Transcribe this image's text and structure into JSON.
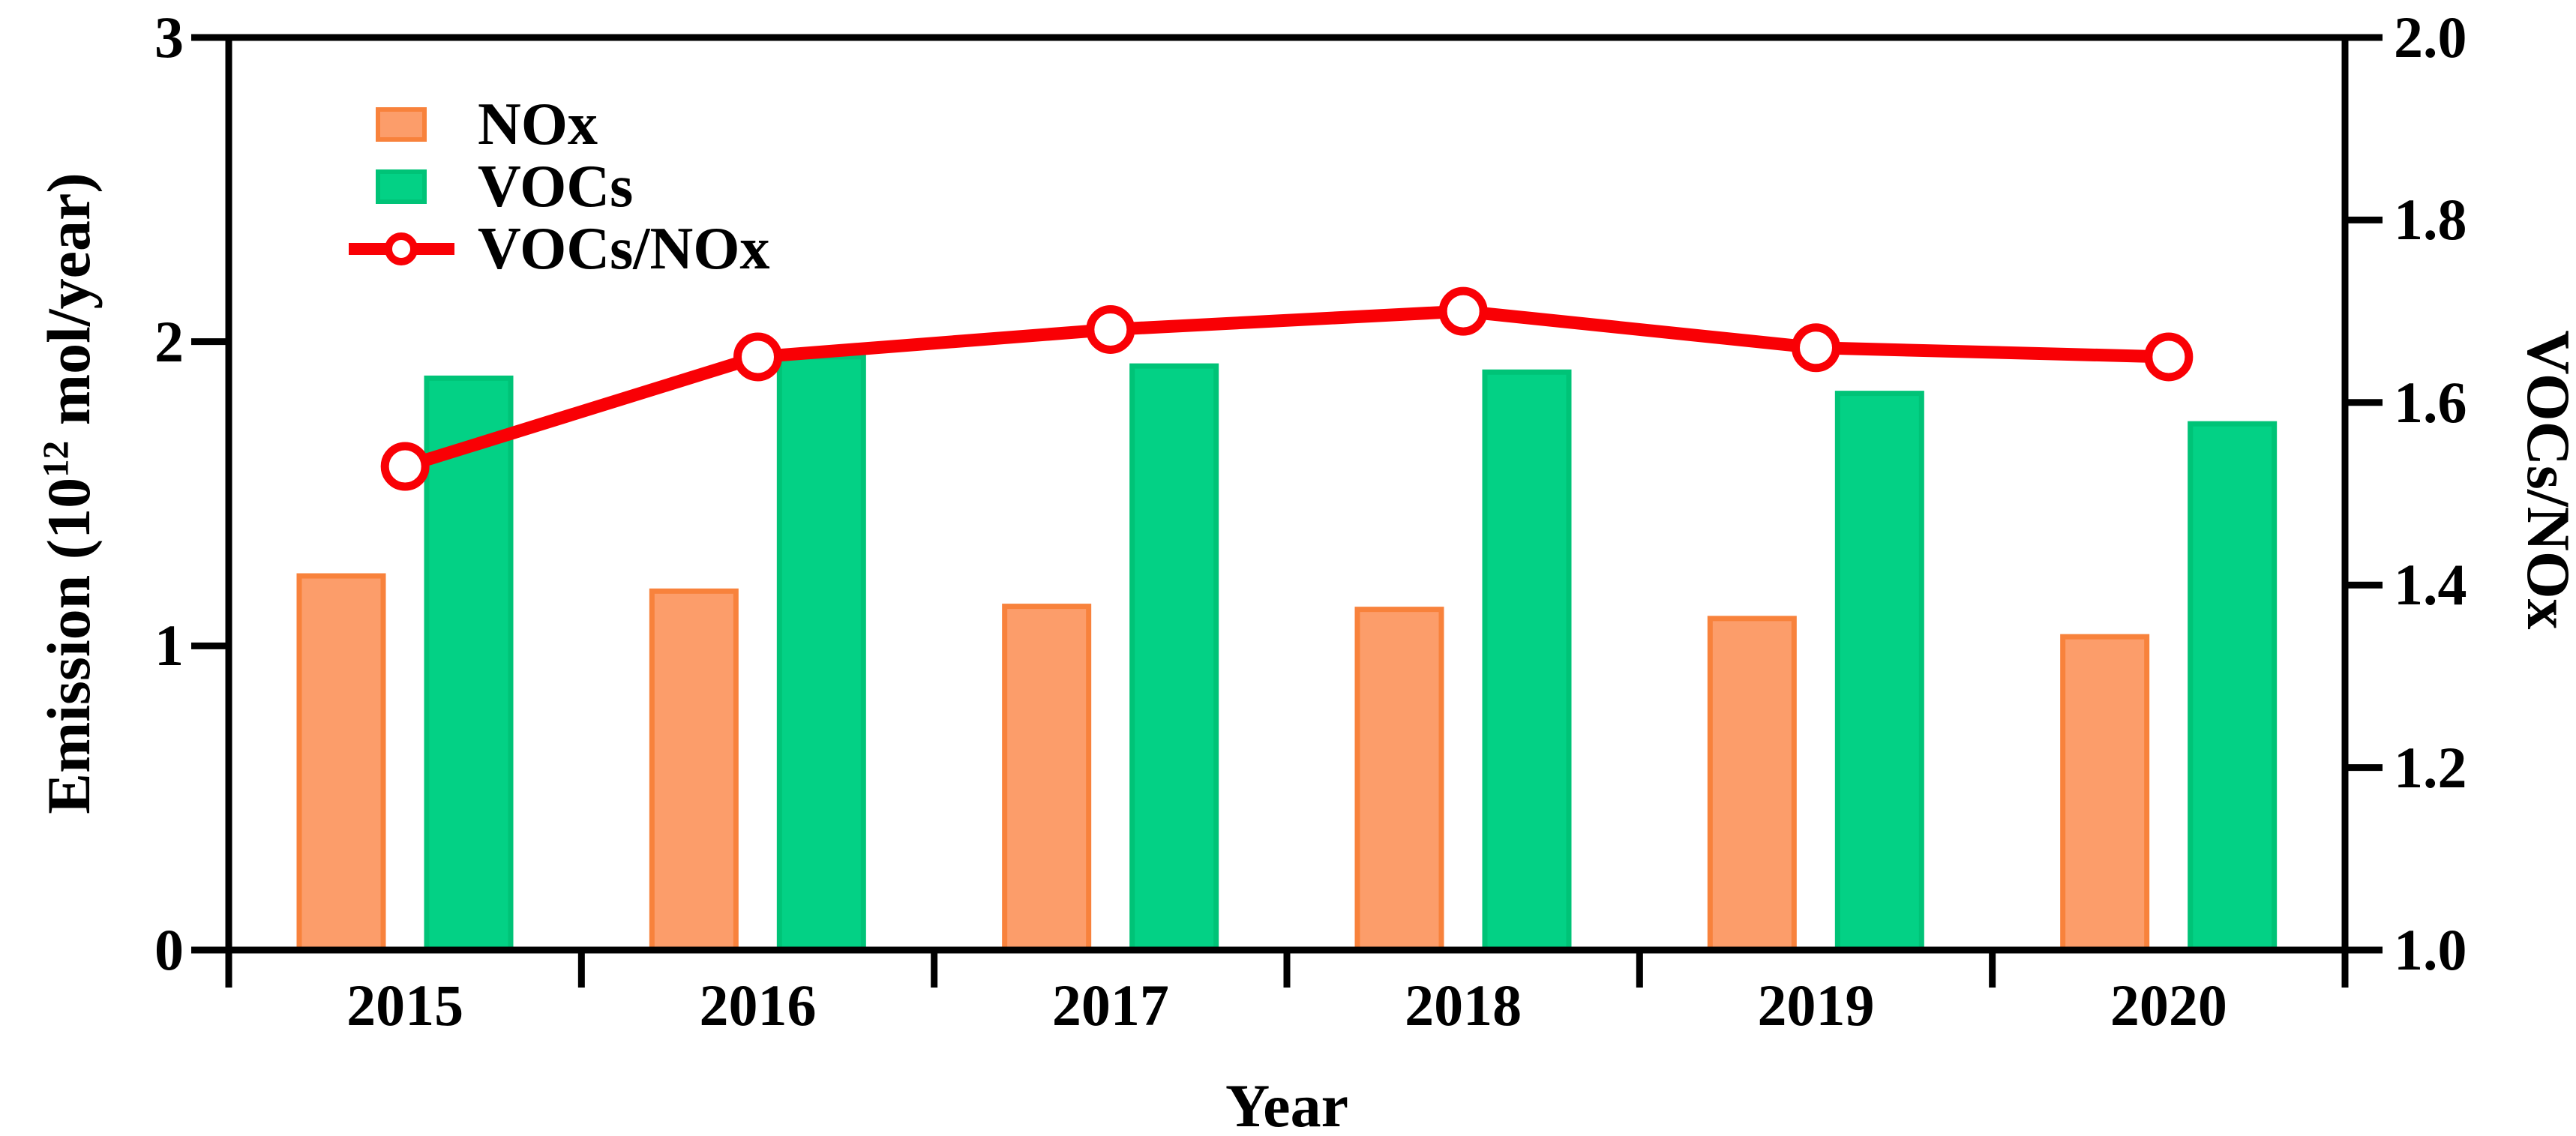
{
  "figure": {
    "background": "#ffffff",
    "colors": {
      "nox_fill": "#FC9D6A",
      "nox_border": "#F8823C",
      "vocs_fill": "#03D185",
      "vocs_border": "#00C377",
      "line": "#F90005",
      "axis": "#000000",
      "text": "#000000"
    },
    "axes": {
      "left": {
        "title_prefix": "Emission (10",
        "title_sup": "12",
        "title_suffix": " mol/year)",
        "ticks": [
          {
            "v": 0,
            "label": "0"
          },
          {
            "v": 1,
            "label": "1"
          },
          {
            "v": 2,
            "label": "2"
          },
          {
            "v": 3,
            "label": "3"
          }
        ]
      },
      "right": {
        "title": "VOCs/NOx",
        "ticks": [
          {
            "v": 1.0,
            "label": "1.0"
          },
          {
            "v": 1.2,
            "label": "1.2"
          },
          {
            "v": 1.4,
            "label": "1.4"
          },
          {
            "v": 1.6,
            "label": "1.6"
          },
          {
            "v": 1.8,
            "label": "1.8"
          },
          {
            "v": 2.0,
            "label": "2.0"
          }
        ]
      },
      "x": {
        "title": "Year"
      }
    }
  },
  "chart_data": {
    "type": "bar",
    "categories": [
      "2015",
      "2016",
      "2017",
      "2018",
      "2019",
      "2020"
    ],
    "series": [
      {
        "name": "NOx",
        "values": [
          1.23,
          1.18,
          1.13,
          1.12,
          1.09,
          1.03
        ]
      },
      {
        "name": "VOCs",
        "values": [
          1.88,
          1.95,
          1.92,
          1.9,
          1.83,
          1.73
        ]
      }
    ],
    "line_series": {
      "name": "VOCs/NOx",
      "values": [
        1.53,
        1.65,
        1.68,
        1.7,
        1.66,
        1.65
      ],
      "axis": "right"
    },
    "title": "",
    "xlabel": "Year",
    "ylabel_left": "Emission (10^12 mol/year)",
    "ylabel_right": "VOCs/NOx",
    "ylim_left": [
      0,
      3
    ],
    "ylim_right": [
      1.0,
      2.0
    ],
    "grid": false,
    "legend_position": "upper-left-inside"
  }
}
